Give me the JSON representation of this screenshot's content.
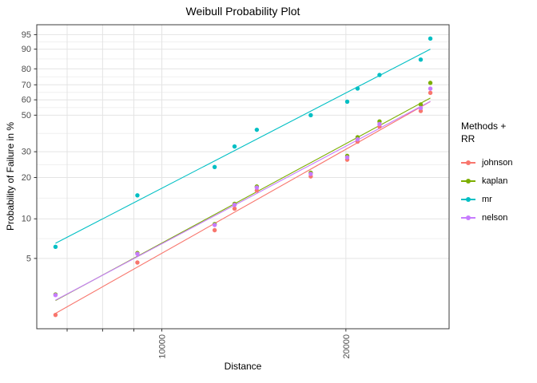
{
  "chart_data": {
    "type": "scatter",
    "title": "Weibull Probability Plot",
    "xlabel": "Distance",
    "ylabel": "Probability of Failure in %",
    "x_scale": "log10",
    "y_scale": "weibull-probability-sev-quantile",
    "grid": true,
    "legend_position": "right",
    "legend_title": "Methods +\n RR",
    "x_ticks": [
      {
        "value": 7000,
        "label": ""
      },
      {
        "value": 8000,
        "label": ""
      },
      {
        "value": 9000,
        "label": ""
      },
      {
        "value": 10000,
        "label": "10000"
      },
      {
        "value": 20000,
        "label": "20000"
      }
    ],
    "y_ticks": [
      5,
      10,
      20,
      30,
      50,
      60,
      70,
      80,
      90,
      95
    ],
    "x": [
      6700,
      9120,
      12200,
      13150,
      14300,
      17520,
      20100,
      20900,
      22700,
      26510,
      27490
    ],
    "series": [
      {
        "name": "johnson",
        "color": "#F8766D",
        "trend_line": true,
        "probability_percent": [
          1.82,
          4.65,
          8.21,
          11.91,
          16.15,
          20.38,
          26.56,
          34.81,
          43.06,
          52.68,
          64.7
        ]
      },
      {
        "name": "kaplan",
        "color": "#7CAE00",
        "trend_line": true,
        "probability_percent": [
          2.63,
          5.5,
          9.13,
          12.92,
          17.27,
          21.62,
          28.16,
          37.14,
          46.12,
          56.89,
          71.26
        ]
      },
      {
        "name": "mr",
        "color": "#00BFC4",
        "trend_line": true,
        "probability_percent": [
          6.14,
          14.91,
          23.68,
          32.46,
          41.23,
          50.0,
          58.77,
          67.54,
          76.32,
          85.09,
          93.86
        ]
      },
      {
        "name": "nelson",
        "color": "#C77CFF",
        "trend_line": true,
        "probability_percent": [
          2.6,
          5.42,
          8.99,
          12.7,
          16.96,
          21.22,
          27.52,
          36.03,
          44.55,
          54.6,
          67.47
        ]
      }
    ],
    "style": {
      "background": "#FFFFFF",
      "grid_major_color": "#E4E4E4",
      "grid_minor_color": "#F0F0F0",
      "panel_border_color": "#3B3B3B",
      "tick_color": "#333333",
      "tick_label_color": "#4D4D4D",
      "text_color": "#000000"
    }
  }
}
